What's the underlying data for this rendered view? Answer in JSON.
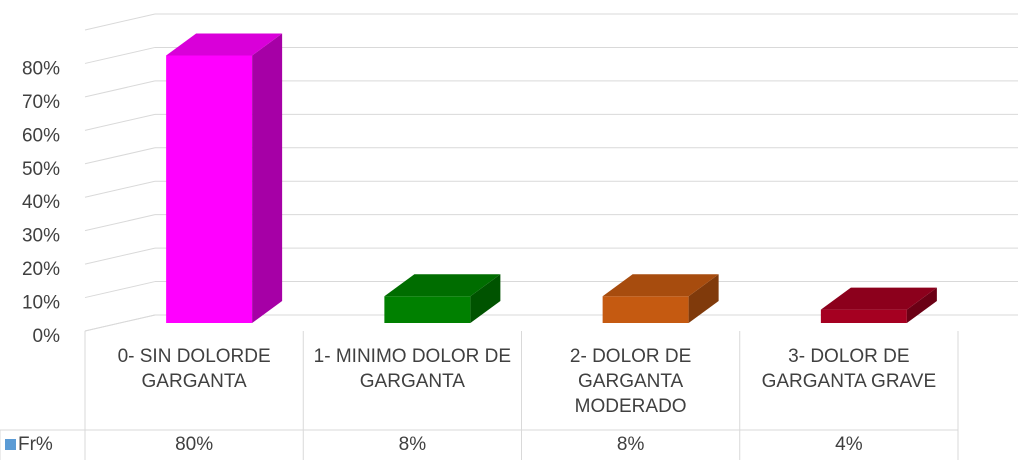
{
  "chart_data": {
    "type": "bar3d",
    "categories": [
      "0- SIN DOLORDE GARGANTA",
      "1- MINIMO DOLOR DE GARGANTA",
      "2- DOLOR DE GARGANTA MODERADO",
      "3- DOLOR DE GARGANTA GRAVE"
    ],
    "series": [
      {
        "name": "Fr%",
        "color": "#5b9bd5",
        "values": [
          80,
          8,
          8,
          4
        ],
        "value_labels": [
          "80%",
          "8%",
          "8%",
          "4%"
        ],
        "colors": [
          "#ff00ff",
          "#008000",
          "#c55a11",
          "#a50021"
        ]
      }
    ],
    "ylim": [
      0,
      90
    ],
    "yticks": [
      {
        "value": 0,
        "label": "0%"
      },
      {
        "value": 10,
        "label": "10%"
      },
      {
        "value": 20,
        "label": "20%"
      },
      {
        "value": 30,
        "label": "30%"
      },
      {
        "value": 40,
        "label": "40%"
      },
      {
        "value": 50,
        "label": "50%"
      },
      {
        "value": 60,
        "label": "60%"
      },
      {
        "value": 70,
        "label": "70%"
      },
      {
        "value": 80,
        "label": "80%"
      }
    ],
    "grid": true
  }
}
